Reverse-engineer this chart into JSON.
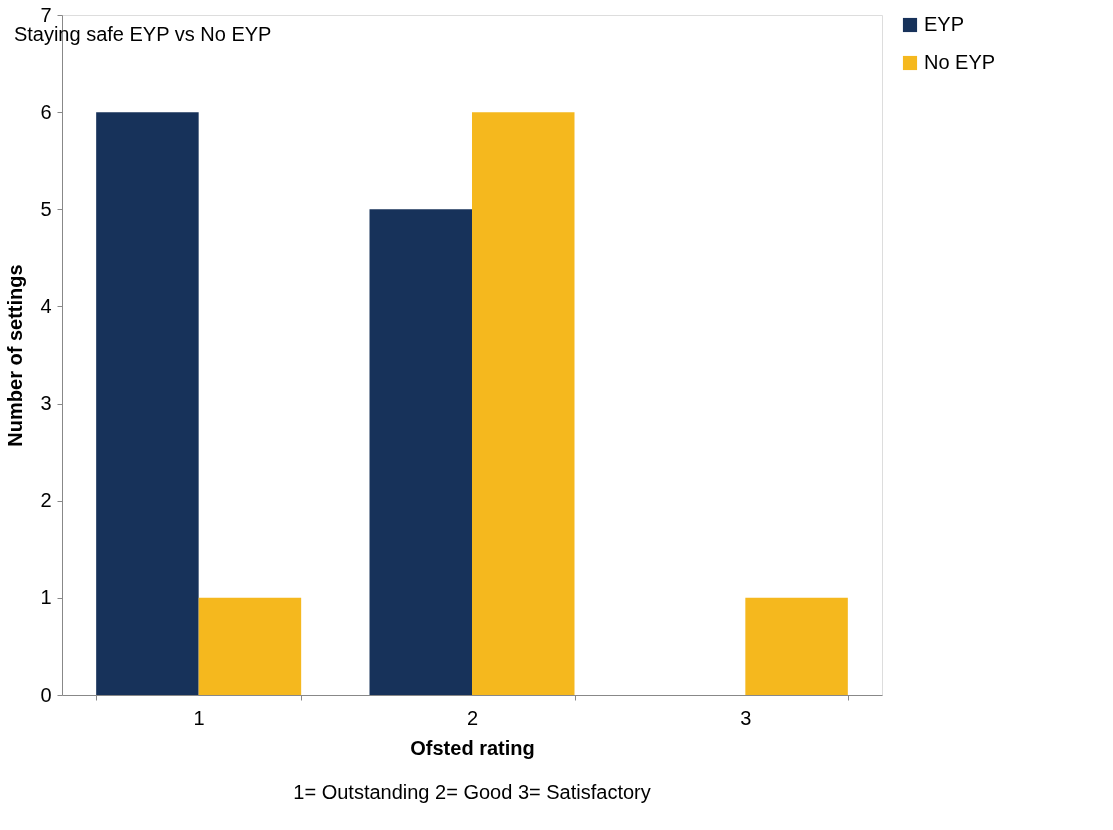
{
  "chart_data": {
    "type": "bar",
    "title": "Staying safe EYP vs No EYP",
    "categories": [
      "1",
      "2",
      "3"
    ],
    "series": [
      {
        "name": "EYP",
        "color": "#17325a",
        "values": [
          6,
          5,
          0
        ]
      },
      {
        "name": "No EYP",
        "color": "#f5b81e",
        "values": [
          1,
          6,
          1
        ]
      }
    ],
    "xlabel": "Ofsted rating",
    "ylabel": "Number of settings",
    "annotations": [
      "1= Outstanding  2= Good  3= Satisfactory"
    ],
    "ylim": [
      0,
      7
    ],
    "yticks": [
      0,
      1,
      2,
      3,
      4,
      5,
      6,
      7
    ],
    "grid": false,
    "legend": "right"
  }
}
